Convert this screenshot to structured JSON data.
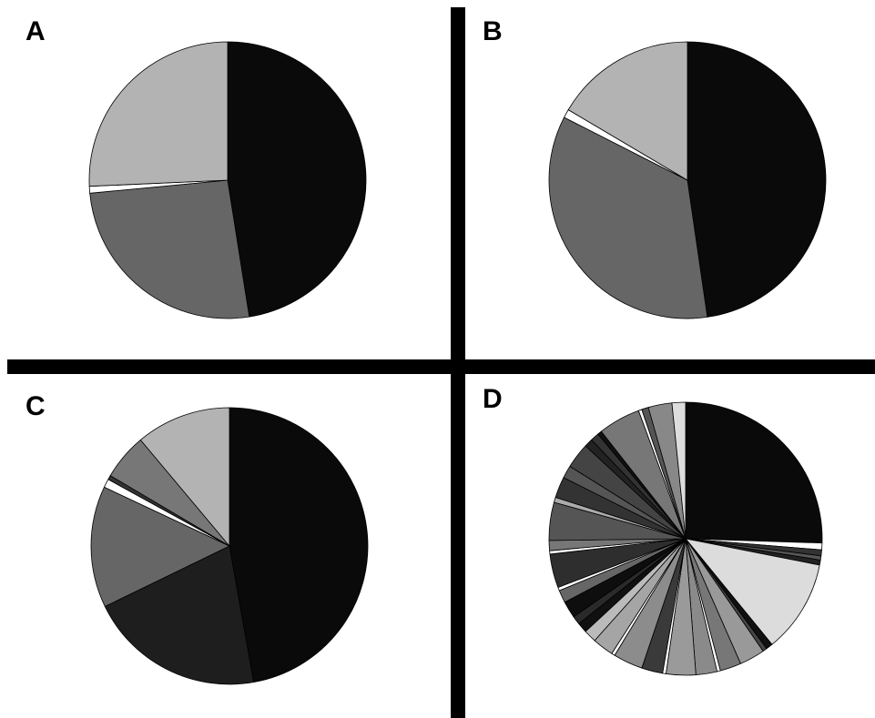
{
  "chart_data": [
    {
      "type": "pie",
      "title": "A",
      "values": [
        47.5,
        26,
        0.8,
        25.7
      ],
      "colors": [
        "#0a0a0a",
        "#666666",
        "#ffffff",
        "#b3b3b3"
      ]
    },
    {
      "type": "pie",
      "title": "B",
      "values": [
        47.7,
        34.8,
        1,
        16.5
      ],
      "colors": [
        "#0a0a0a",
        "#666666",
        "#ffffff",
        "#b3b3b3"
      ]
    },
    {
      "type": "pie",
      "title": "C",
      "values": [
        47.2,
        20.6,
        14.2,
        1,
        0.5,
        5.4,
        11.1
      ],
      "colors": [
        "#0a0a0a",
        "#1e1e1e",
        "#666666",
        "#ffffff",
        "#333333",
        "#777777",
        "#b3b3b3"
      ]
    },
    {
      "type": "pie",
      "title": "D",
      "values": [
        25.5,
        0.8,
        0.7,
        0.5,
        0.6,
        11,
        0.8,
        0.5,
        3,
        2.5,
        0.4,
        2.5,
        3.5,
        0.4,
        2.5,
        3.5,
        0.4,
        2.5,
        1.5,
        1.2,
        1,
        2,
        1.5,
        0.4,
        4,
        0.4,
        1.2,
        4.5,
        0.6,
        2.5,
        1.5,
        3,
        1,
        1,
        0.5,
        5,
        0.4,
        0.8,
        2.8,
        1.6
      ],
      "colors": [
        "#0a0a0a",
        "#ffffff",
        "#333333",
        "#555555",
        "#222222",
        "#dcdcdc",
        "#111111",
        "#444444",
        "#999999",
        "#777777",
        "#ffffff",
        "#8a8a8a",
        "#9a9a9a",
        "#ffffff",
        "#3a3a3a",
        "#8c8c8c",
        "#ffffff",
        "#a5a5a5",
        "#bbbbbb",
        "#111111",
        "#2a2a2a",
        "#0e0e0e",
        "#666666",
        "#ffffff",
        "#2e2e2e",
        "#ffffff",
        "#777777",
        "#555555",
        "#aaaaaa",
        "#333333",
        "#555555",
        "#444444",
        "#222222",
        "#333333",
        "#111111",
        "#777777",
        "#ffffff",
        "#555555",
        "#888888",
        "#dddddd"
      ]
    }
  ]
}
